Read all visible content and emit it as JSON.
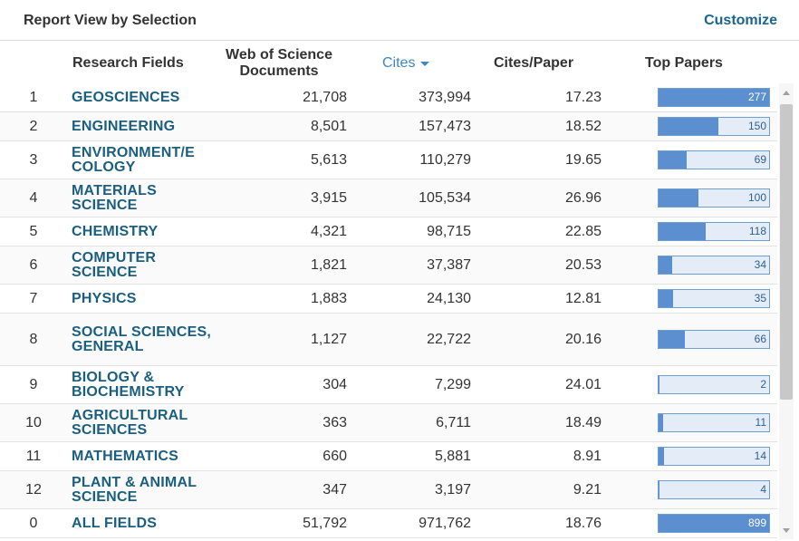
{
  "header": {
    "title": "Report View by Selection",
    "customize": "Customize"
  },
  "columns": {
    "field": "Research Fields",
    "docs": "Web of Science Documents",
    "cites": "Cites",
    "cites_per_paper": "Cites/Paper",
    "top_papers": "Top Papers"
  },
  "colors": {
    "link": "#1a5f7f",
    "accent": "#3b87c6",
    "bar": "#5b8fd0",
    "bar_bg": "#e4ecf7"
  },
  "rows": [
    {
      "rank": "1",
      "field": "GEOSCIENCES",
      "docs": "21,708",
      "cites": "373,994",
      "cpp": "17.23",
      "top": "277",
      "top_fraction": 1.0
    },
    {
      "rank": "2",
      "field": "ENGINEERING",
      "docs": "8,501",
      "cites": "157,473",
      "cpp": "18.52",
      "top": "150",
      "top_fraction": 0.54
    },
    {
      "rank": "3",
      "field": "ENVIRONMENT/E COLOGY",
      "docs": "5,613",
      "cites": "110,279",
      "cpp": "19.65",
      "top": "69",
      "top_fraction": 0.25
    },
    {
      "rank": "4",
      "field": "MATERIALS SCIENCE",
      "docs": "3,915",
      "cites": "105,534",
      "cpp": "26.96",
      "top": "100",
      "top_fraction": 0.36
    },
    {
      "rank": "5",
      "field": "CHEMISTRY",
      "docs": "4,321",
      "cites": "98,715",
      "cpp": "22.85",
      "top": "118",
      "top_fraction": 0.43
    },
    {
      "rank": "6",
      "field": "COMPUTER SCIENCE",
      "docs": "1,821",
      "cites": "37,387",
      "cpp": "20.53",
      "top": "34",
      "top_fraction": 0.12
    },
    {
      "rank": "7",
      "field": "PHYSICS",
      "docs": "1,883",
      "cites": "24,130",
      "cpp": "12.81",
      "top": "35",
      "top_fraction": 0.13
    },
    {
      "rank": "8",
      "field": "SOCIAL SCIENCES, GENERAL",
      "docs": "1,127",
      "cites": "22,722",
      "cpp": "20.16",
      "top": "66",
      "top_fraction": 0.24
    },
    {
      "rank": "9",
      "field": "BIOLOGY & BIOCHEMISTRY",
      "docs": "304",
      "cites": "7,299",
      "cpp": "24.01",
      "top": "2",
      "top_fraction": 0.01
    },
    {
      "rank": "10",
      "field": "AGRICULTURAL SCIENCES",
      "docs": "363",
      "cites": "6,711",
      "cpp": "18.49",
      "top": "11",
      "top_fraction": 0.04
    },
    {
      "rank": "11",
      "field": "MATHEMATICS",
      "docs": "660",
      "cites": "5,881",
      "cpp": "8.91",
      "top": "14",
      "top_fraction": 0.05
    },
    {
      "rank": "12",
      "field": "PLANT & ANIMAL SCIENCE",
      "docs": "347",
      "cites": "3,197",
      "cpp": "9.21",
      "top": "4",
      "top_fraction": 0.01
    },
    {
      "rank": "0",
      "field": "ALL FIELDS",
      "docs": "51,792",
      "cites": "971,762",
      "cpp": "18.76",
      "top": "899",
      "top_fraction": 1.0
    }
  ]
}
